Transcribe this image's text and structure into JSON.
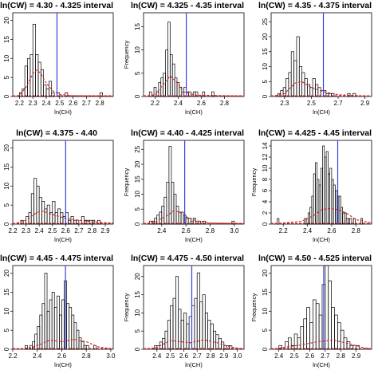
{
  "figure": {
    "ylabel": "Frequency",
    "xlabel": "ln(CH)",
    "colors": {
      "bars": "#000000",
      "vline": "#3344dd",
      "density": "#dd2222",
      "background": "#ffffff"
    }
  },
  "chart_data": [
    {
      "type": "bar",
      "title": "ln(CW) = 4.30 - 4.325 interval",
      "xlabel": "ln(CH)",
      "ylabel": "",
      "xlim": [
        2.15,
        2.9
      ],
      "ylim": [
        0,
        22
      ],
      "xticks": [
        2.2,
        2.3,
        2.4,
        2.5,
        2.6,
        2.7,
        2.8
      ],
      "yticks": [
        0,
        5,
        10,
        15,
        20
      ],
      "bin_width": 0.02,
      "bin_start": 2.2,
      "counts": [
        1,
        2,
        8,
        10,
        11,
        19,
        11,
        9,
        7,
        3,
        2,
        4,
        1,
        0,
        1,
        0,
        0,
        1,
        0,
        0,
        0,
        0,
        0,
        0,
        0,
        0,
        0,
        0,
        0,
        0,
        1
      ],
      "vline": 2.48,
      "density": [
        [
          2.15,
          0.0
        ],
        [
          2.2,
          0.3
        ],
        [
          2.25,
          2.5
        ],
        [
          2.3,
          6.0
        ],
        [
          2.33,
          7.0
        ],
        [
          2.36,
          6.0
        ],
        [
          2.4,
          3.5
        ],
        [
          2.45,
          1.5
        ],
        [
          2.5,
          0.5
        ],
        [
          2.6,
          0.2
        ],
        [
          2.9,
          0.1
        ]
      ]
    },
    {
      "type": "bar",
      "title": "ln(CW) = 4.325 - 4.35 interval",
      "xlabel": "ln(CH)",
      "ylabel": "Frequency",
      "xlim": [
        2.1,
        2.97
      ],
      "ylim": [
        0,
        18
      ],
      "xticks": [
        2.2,
        2.4,
        2.6,
        2.8
      ],
      "yticks": [
        0,
        5,
        10,
        15
      ],
      "bin_width": 0.02,
      "bin_start": 2.15,
      "counts": [
        1,
        0,
        2,
        1,
        3,
        4,
        5,
        10,
        16,
        9,
        7,
        4,
        3,
        2,
        1,
        2,
        1,
        1,
        0,
        1,
        1,
        0,
        0,
        1,
        0,
        0,
        0,
        1
      ],
      "vline": 2.47,
      "density": [
        [
          2.1,
          0.0
        ],
        [
          2.2,
          0.4
        ],
        [
          2.27,
          2.5
        ],
        [
          2.33,
          4.4
        ],
        [
          2.38,
          3.2
        ],
        [
          2.45,
          1.0
        ],
        [
          2.55,
          0.3
        ],
        [
          2.97,
          0.1
        ]
      ]
    },
    {
      "type": "bar",
      "title": "ln(CW) = 4.35 - 4.375 interval",
      "xlabel": "ln(CH)",
      "ylabel": "",
      "xlim": [
        2.2,
        2.95
      ],
      "ylim": [
        0,
        28
      ],
      "xticks": [
        2.3,
        2.5,
        2.7,
        2.9
      ],
      "yticks": [
        0,
        5,
        10,
        15,
        20,
        25
      ],
      "bin_width": 0.02,
      "bin_start": 2.25,
      "counts": [
        1,
        2,
        3,
        6,
        8,
        15,
        12,
        20,
        10,
        8,
        6,
        4,
        3,
        6,
        4,
        3,
        2,
        2,
        1,
        1,
        1,
        0,
        0,
        0,
        0,
        0,
        1,
        0,
        1
      ],
      "vline": 2.59,
      "density": [
        [
          2.2,
          0.0
        ],
        [
          2.3,
          1.0
        ],
        [
          2.38,
          4.5
        ],
        [
          2.43,
          5.0
        ],
        [
          2.5,
          3.0
        ],
        [
          2.6,
          1.5
        ],
        [
          2.7,
          0.6
        ],
        [
          2.95,
          0.1
        ]
      ]
    },
    {
      "type": "bar",
      "title": "ln(CW) = 4.375 - 4.40",
      "xlabel": "ln(CH)",
      "ylabel": "",
      "xlim": [
        2.2,
        2.96
      ],
      "ylim": [
        0,
        22
      ],
      "xticks": [
        2.2,
        2.3,
        2.4,
        2.5,
        2.6,
        2.7,
        2.8,
        2.9
      ],
      "yticks": [
        0,
        5,
        10,
        15,
        20
      ],
      "bin_width": 0.02,
      "bin_start": 2.26,
      "counts": [
        1,
        0,
        2,
        3,
        8,
        12,
        10,
        7,
        6,
        4,
        5,
        3,
        6,
        3,
        4,
        3,
        2,
        3,
        1,
        2,
        1,
        1,
        0,
        2,
        1,
        1,
        1,
        1,
        0,
        1,
        0
      ],
      "vline": 2.6,
      "density": [
        [
          2.2,
          0.0
        ],
        [
          2.3,
          1.0
        ],
        [
          2.38,
          3.0
        ],
        [
          2.42,
          3.5
        ],
        [
          2.5,
          2.5
        ],
        [
          2.6,
          1.5
        ],
        [
          2.7,
          1.0
        ],
        [
          2.8,
          0.6
        ],
        [
          2.96,
          0.2
        ]
      ]
    },
    {
      "type": "bar",
      "title": "ln(CW) = 4.40 - 4.425 interval",
      "xlabel": "ln(CH)",
      "ylabel": "Frequency",
      "xlim": [
        2.25,
        3.08
      ],
      "ylim": [
        0,
        28
      ],
      "xticks": [
        2.4,
        2.6,
        2.8,
        3.0
      ],
      "yticks": [
        0,
        5,
        10,
        15,
        20,
        25
      ],
      "bin_width": 0.02,
      "bin_start": 2.3,
      "counts": [
        1,
        1,
        2,
        3,
        4,
        6,
        9,
        14,
        26,
        14,
        10,
        6,
        4,
        4,
        3,
        2,
        2,
        1,
        2,
        1,
        1,
        0,
        1,
        0,
        0,
        0,
        0,
        0,
        0,
        0,
        0,
        0,
        0,
        0,
        1
      ],
      "vline": 2.59,
      "density": [
        [
          2.25,
          0.0
        ],
        [
          2.35,
          0.8
        ],
        [
          2.45,
          3.0
        ],
        [
          2.5,
          4.5
        ],
        [
          2.55,
          4.0
        ],
        [
          2.62,
          2.0
        ],
        [
          2.7,
          1.0
        ],
        [
          2.8,
          0.4
        ],
        [
          3.08,
          0.1
        ]
      ]
    },
    {
      "type": "bar",
      "title": "ln(CW) = 4.425 - 4.45 interval",
      "xlabel": "ln(CH)",
      "ylabel": "Frequency",
      "xlim": [
        2.1,
        2.93
      ],
      "ylim": [
        0,
        15
      ],
      "xticks": [
        2.2,
        2.4,
        2.6,
        2.8
      ],
      "yticks": [
        0,
        2,
        4,
        6,
        8,
        10,
        12,
        14
      ],
      "bin_width": 0.015,
      "bin_start": 2.15,
      "counts": [
        1,
        0,
        0,
        0,
        0,
        0,
        0,
        0,
        0,
        0,
        0,
        0,
        0,
        0,
        0,
        1,
        1,
        2,
        3,
        5,
        9,
        11,
        8,
        7,
        10,
        14,
        12,
        13,
        9,
        10,
        8,
        7,
        6,
        5,
        5,
        3,
        2,
        2,
        1,
        1,
        1,
        0,
        1,
        0,
        0,
        0,
        1
      ],
      "vline": 2.65,
      "density": [
        [
          2.1,
          0.0
        ],
        [
          2.35,
          0.5
        ],
        [
          2.45,
          1.5
        ],
        [
          2.52,
          2.6
        ],
        [
          2.58,
          2.8
        ],
        [
          2.65,
          2.6
        ],
        [
          2.72,
          2.0
        ],
        [
          2.8,
          0.8
        ],
        [
          2.93,
          0.2
        ]
      ]
    },
    {
      "type": "bar",
      "title": "ln(CW) = 4.45 - 4.475 interval",
      "xlabel": "ln(CH)",
      "ylabel": "",
      "xlim": [
        2.2,
        3.02
      ],
      "ylim": [
        0,
        22
      ],
      "xticks": [
        2.2,
        2.4,
        2.6,
        2.8,
        3.0
      ],
      "yticks": [
        0,
        5,
        10,
        15,
        20
      ],
      "bin_width": 0.02,
      "bin_start": 2.3,
      "counts": [
        1,
        0,
        1,
        2,
        4,
        6,
        9,
        12,
        20,
        10,
        13,
        15,
        11,
        14,
        9,
        13,
        18,
        12,
        11,
        9,
        7,
        5,
        3,
        2,
        1,
        1,
        0,
        0,
        1
      ],
      "vline": 2.63,
      "density": [
        [
          2.2,
          0.0
        ],
        [
          2.35,
          0.4
        ],
        [
          2.45,
          1.6
        ],
        [
          2.5,
          2.4
        ],
        [
          2.6,
          2.0
        ],
        [
          2.7,
          2.6
        ],
        [
          2.8,
          2.0
        ],
        [
          2.9,
          0.6
        ],
        [
          3.02,
          0.1
        ]
      ]
    },
    {
      "type": "bar",
      "title": "ln(CW) = 4.475 - 4.50 interval",
      "xlabel": "ln(CH)",
      "ylabel": "Frequency",
      "xlim": [
        2.3,
        3.05
      ],
      "ylim": [
        0,
        23
      ],
      "xticks": [
        2.4,
        2.5,
        2.6,
        2.7,
        2.8,
        2.9,
        3.0
      ],
      "yticks": [
        0,
        5,
        10,
        15,
        20
      ],
      "bin_width": 0.02,
      "bin_start": 2.38,
      "counts": [
        1,
        1,
        2,
        3,
        5,
        8,
        12,
        14,
        20,
        11,
        8,
        10,
        7,
        9,
        12,
        14,
        21,
        13,
        15,
        10,
        8,
        7,
        5,
        4,
        3,
        2,
        1,
        1,
        1
      ],
      "vline": 2.66,
      "density": [
        [
          2.3,
          0.0
        ],
        [
          2.4,
          0.5
        ],
        [
          2.5,
          2.4
        ],
        [
          2.55,
          2.2
        ],
        [
          2.65,
          1.8
        ],
        [
          2.75,
          2.6
        ],
        [
          2.85,
          1.8
        ],
        [
          2.95,
          0.6
        ],
        [
          3.05,
          0.1
        ]
      ]
    },
    {
      "type": "bar",
      "title": "ln(CW) = 4.50 - 4.525 interval",
      "xlabel": "ln(CH)",
      "ylabel": "Frequency",
      "xlim": [
        2.35,
        3.0
      ],
      "ylim": [
        0,
        22
      ],
      "xticks": [
        2.4,
        2.5,
        2.6,
        2.7,
        2.8,
        2.9
      ],
      "yticks": [
        0,
        5,
        10,
        15,
        20
      ],
      "bin_width": 0.02,
      "bin_start": 2.4,
      "counts": [
        1,
        0,
        2,
        3,
        1,
        4,
        3,
        6,
        8,
        11,
        7,
        13,
        12,
        9,
        17,
        22,
        18,
        11,
        9,
        7,
        5,
        3,
        2,
        1,
        1,
        1
      ],
      "vline": 2.69,
      "density": [
        [
          2.35,
          0.0
        ],
        [
          2.45,
          0.6
        ],
        [
          2.55,
          1.2
        ],
        [
          2.65,
          2.0
        ],
        [
          2.75,
          2.4
        ],
        [
          2.85,
          1.5
        ],
        [
          2.95,
          0.4
        ],
        [
          3.0,
          0.1
        ]
      ]
    }
  ]
}
